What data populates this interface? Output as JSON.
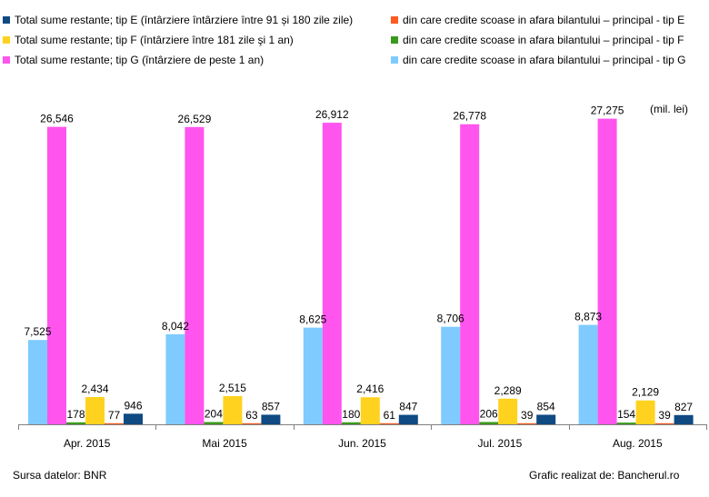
{
  "unit_label": "(mil. lei)",
  "source_label": "Sursa datelor: BNR",
  "credit_label": "Grafic realizat de: Bancherul.ro",
  "chart_data": {
    "type": "bar",
    "categories": [
      "Apr. 2015",
      "Mai 2015",
      "Jun. 2015",
      "Jul. 2015",
      "Aug. 2015"
    ],
    "ylim": [
      0,
      30000
    ],
    "grid": false,
    "legend_position": "top",
    "series": [
      {
        "name": "din care credite scoase in afara bilantului – principal - tip G",
        "color": "#7fcbff",
        "values": [
          7525,
          8042,
          8625,
          8706,
          8873
        ],
        "labels": [
          "7,525",
          "8,042",
          "8,625",
          "8,706",
          "8,873"
        ]
      },
      {
        "name": "Total sume restante; tip G (întârziere de peste 1 an)",
        "color": "#ff55ee",
        "values": [
          26546,
          26529,
          26912,
          26778,
          27275
        ],
        "labels": [
          "26,546",
          "26,529",
          "26,912",
          "26,778",
          "27,275"
        ]
      },
      {
        "name": "din care credite scoase in afara bilantului – principal - tip F",
        "color": "#3a9a1c",
        "values": [
          178,
          204,
          180,
          206,
          154
        ],
        "labels": [
          "178",
          "204",
          "180",
          "206",
          "154"
        ]
      },
      {
        "name": "Total sume restante; tip F (întârziere între 181 zile şi 1 an)",
        "color": "#ffd21f",
        "values": [
          2434,
          2515,
          2416,
          2289,
          2129
        ],
        "labels": [
          "2,434",
          "2,515",
          "2,416",
          "2,289",
          "2,129"
        ]
      },
      {
        "name": "din care credite scoase in afara bilantului – principal - tip E",
        "color": "#ff5a1f",
        "values": [
          77,
          63,
          61,
          39,
          39
        ],
        "labels": [
          "77",
          "63",
          "61",
          "39",
          "39"
        ]
      },
      {
        "name": "Total sume restante; tip E (întârziere întârziere între 91 și 180 zile zile)",
        "color": "#0f4a82",
        "values": [
          946,
          857,
          847,
          854,
          827
        ],
        "labels": [
          "946",
          "857",
          "847",
          "854",
          "827"
        ]
      }
    ]
  }
}
